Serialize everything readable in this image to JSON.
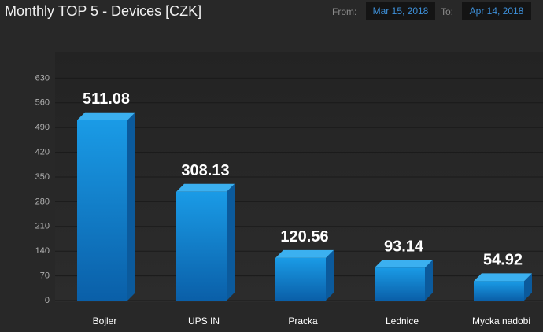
{
  "header": {
    "title": "Monthly TOP 5 - Devices [CZK]",
    "from_label": "From:",
    "from_date": "Mar 15, 2018",
    "to_label": "To:",
    "to_date": "Apr 14, 2018"
  },
  "chart_data": {
    "type": "bar",
    "categories": [
      "Bojler",
      "UPS IN",
      "Pracka",
      "Lednice",
      "Mycka nadobi"
    ],
    "values": [
      511.08,
      308.13,
      120.56,
      93.14,
      54.92
    ],
    "color": "#1a8fd8",
    "ylim": [
      0,
      700
    ],
    "yticks": [
      0,
      70,
      140,
      210,
      280,
      350,
      420,
      490,
      560,
      630
    ],
    "grid": true
  }
}
